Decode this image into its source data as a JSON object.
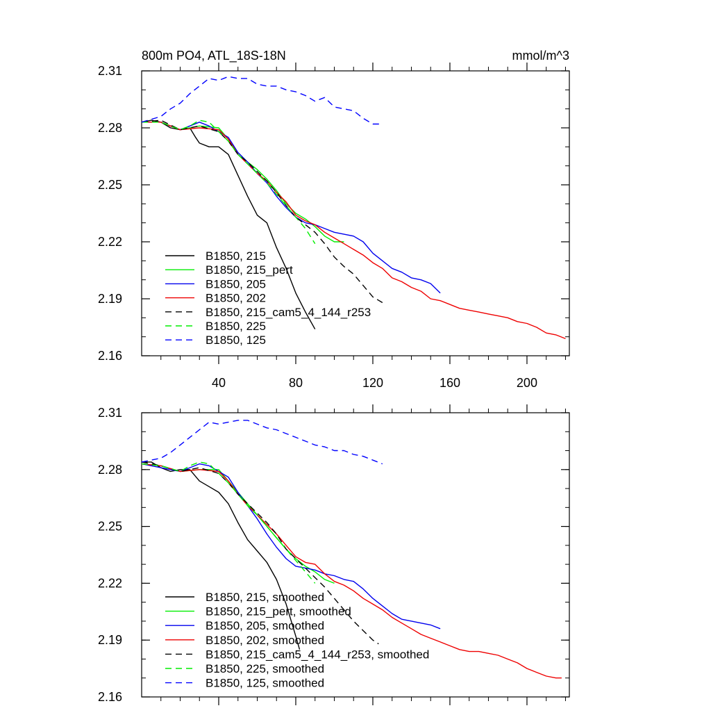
{
  "title_left": "800m PO4, ATL_18S-18N",
  "title_right": "mmol/m^3",
  "colors": {
    "black": "#000000",
    "green": "#00ee00",
    "blue": "#0000ee",
    "red": "#ee0000",
    "blue_dashed": "#0000ff"
  },
  "chart_data": [
    {
      "type": "line",
      "panel": "top",
      "xlim": [
        0,
        222
      ],
      "ylim": [
        2.16,
        2.31
      ],
      "xticks": [
        40,
        80,
        120,
        160,
        200
      ],
      "yticks": [
        2.16,
        2.19,
        2.22,
        2.25,
        2.28,
        2.31
      ],
      "ytick_labels": [
        "2.16",
        "2.19",
        "2.22",
        "2.25",
        "2.28",
        "2.31"
      ],
      "grid": false,
      "legend_position": "bottom-left",
      "series": [
        {
          "name": "B1850, 215",
          "color": "#000000",
          "dash": "solid",
          "x": [
            0,
            5,
            10,
            15,
            20,
            25,
            28,
            30,
            35,
            40,
            45,
            50,
            55,
            60,
            65,
            70,
            75,
            80,
            85,
            90
          ],
          "y": [
            2.283,
            2.284,
            2.283,
            2.28,
            2.279,
            2.28,
            2.275,
            2.272,
            2.27,
            2.27,
            2.266,
            2.255,
            2.244,
            2.234,
            2.23,
            2.217,
            2.206,
            2.193,
            2.183,
            2.174
          ]
        },
        {
          "name": "B1850, 215_pert",
          "color": "#00ee00",
          "dash": "solid",
          "x": [
            0,
            10,
            20,
            30,
            40,
            45,
            50,
            55,
            60,
            65,
            70,
            75,
            80,
            85,
            90,
            95,
            100,
            105
          ],
          "y": [
            2.283,
            2.283,
            2.279,
            2.281,
            2.28,
            2.274,
            2.267,
            2.262,
            2.258,
            2.253,
            2.247,
            2.24,
            2.235,
            2.232,
            2.228,
            2.223,
            2.22,
            2.22
          ]
        },
        {
          "name": "B1850, 205",
          "color": "#0000ee",
          "dash": "solid",
          "x": [
            0,
            10,
            20,
            25,
            30,
            35,
            40,
            45,
            50,
            55,
            60,
            65,
            70,
            75,
            80,
            85,
            90,
            95,
            100,
            105,
            110,
            115,
            120,
            125,
            130,
            135,
            140,
            145,
            150,
            155
          ],
          "y": [
            2.283,
            2.283,
            2.279,
            2.281,
            2.283,
            2.281,
            2.278,
            2.275,
            2.267,
            2.262,
            2.256,
            2.251,
            2.244,
            2.238,
            2.233,
            2.23,
            2.229,
            2.227,
            2.225,
            2.224,
            2.223,
            2.22,
            2.214,
            2.21,
            2.206,
            2.204,
            2.201,
            2.2,
            2.198,
            2.193
          ]
        },
        {
          "name": "B1850, 202",
          "color": "#ee0000",
          "dash": "solid",
          "x": [
            0,
            10,
            20,
            30,
            40,
            45,
            50,
            55,
            60,
            65,
            70,
            75,
            80,
            85,
            90,
            95,
            100,
            105,
            110,
            115,
            120,
            125,
            130,
            135,
            140,
            145,
            150,
            155,
            160,
            165,
            170,
            175,
            180,
            185,
            190,
            195,
            200,
            205,
            210,
            215,
            220
          ],
          "y": [
            2.283,
            2.283,
            2.279,
            2.28,
            2.279,
            2.274,
            2.266,
            2.261,
            2.256,
            2.252,
            2.246,
            2.241,
            2.234,
            2.231,
            2.229,
            2.225,
            2.222,
            2.219,
            2.216,
            2.213,
            2.209,
            2.206,
            2.201,
            2.199,
            2.196,
            2.194,
            2.19,
            2.189,
            2.187,
            2.185,
            2.184,
            2.183,
            2.182,
            2.181,
            2.18,
            2.178,
            2.177,
            2.175,
            2.172,
            2.171,
            2.169
          ]
        },
        {
          "name": "B1850, 215_cam5_4_144_r253",
          "color": "#000000",
          "dash": "dashed",
          "x": [
            0,
            10,
            20,
            30,
            40,
            45,
            50,
            55,
            60,
            65,
            70,
            75,
            80,
            85,
            90,
            95,
            100,
            105,
            110,
            115,
            120,
            125
          ],
          "y": [
            2.283,
            2.284,
            2.279,
            2.281,
            2.278,
            2.273,
            2.266,
            2.262,
            2.257,
            2.252,
            2.246,
            2.239,
            2.233,
            2.229,
            2.225,
            2.219,
            2.212,
            2.207,
            2.203,
            2.197,
            2.191,
            2.188
          ]
        },
        {
          "name": "B1850, 225",
          "color": "#00ee00",
          "dash": "dashed",
          "x": [
            0,
            10,
            20,
            25,
            30,
            35,
            40,
            45,
            50,
            55,
            60,
            65,
            70,
            75,
            80,
            85,
            90
          ],
          "y": [
            2.283,
            2.283,
            2.279,
            2.281,
            2.284,
            2.283,
            2.278,
            2.273,
            2.266,
            2.261,
            2.256,
            2.251,
            2.245,
            2.239,
            2.233,
            2.227,
            2.219
          ]
        },
        {
          "name": "B1850, 125",
          "color": "#0000ff",
          "dash": "dashed",
          "x": [
            0,
            10,
            15,
            20,
            25,
            30,
            35,
            40,
            45,
            50,
            55,
            60,
            65,
            70,
            75,
            80,
            85,
            90,
            95,
            100,
            105,
            110,
            115,
            120,
            125
          ],
          "y": [
            2.283,
            2.286,
            2.29,
            2.293,
            2.298,
            2.302,
            2.306,
            2.305,
            2.307,
            2.306,
            2.306,
            2.303,
            2.302,
            2.302,
            2.3,
            2.299,
            2.297,
            2.294,
            2.296,
            2.291,
            2.29,
            2.289,
            2.285,
            2.282,
            2.282
          ]
        }
      ]
    },
    {
      "type": "line",
      "panel": "bottom",
      "xlim": [
        0,
        222
      ],
      "ylim": [
        2.16,
        2.31
      ],
      "xticks": [
        40,
        80,
        120,
        160,
        200
      ],
      "yticks": [
        2.16,
        2.19,
        2.22,
        2.25,
        2.28,
        2.31
      ],
      "ytick_labels": [
        "2.16",
        "2.19",
        "2.22",
        "2.25",
        "2.28",
        "2.31"
      ],
      "grid": false,
      "legend_position": "bottom-left",
      "series": [
        {
          "name": "B1850, 215, smoothed",
          "color": "#000000",
          "dash": "solid",
          "x": [
            0,
            5,
            10,
            15,
            20,
            25,
            30,
            35,
            40,
            45,
            50,
            55,
            60,
            65,
            70,
            75,
            80,
            82
          ],
          "y": [
            2.284,
            2.284,
            2.281,
            2.279,
            2.28,
            2.28,
            2.274,
            2.271,
            2.268,
            2.262,
            2.252,
            2.243,
            2.237,
            2.231,
            2.222,
            2.209,
            2.192,
            2.185
          ]
        },
        {
          "name": "B1850, 215_pert, smoothed",
          "color": "#00ee00",
          "dash": "solid",
          "x": [
            0,
            10,
            20,
            30,
            40,
            45,
            50,
            55,
            60,
            65,
            70,
            75,
            80,
            85,
            90,
            95,
            100
          ],
          "y": [
            2.283,
            2.282,
            2.279,
            2.28,
            2.28,
            2.274,
            2.268,
            2.262,
            2.256,
            2.25,
            2.244,
            2.238,
            2.233,
            2.229,
            2.226,
            2.222,
            2.22
          ]
        },
        {
          "name": "B1850, 205, smoothed",
          "color": "#0000ee",
          "dash": "solid",
          "x": [
            0,
            10,
            20,
            25,
            30,
            35,
            40,
            45,
            50,
            55,
            60,
            65,
            70,
            75,
            80,
            85,
            90,
            95,
            100,
            105,
            110,
            115,
            120,
            125,
            130,
            135,
            140,
            145,
            150,
            155
          ],
          "y": [
            2.283,
            2.281,
            2.279,
            2.281,
            2.283,
            2.282,
            2.279,
            2.276,
            2.268,
            2.261,
            2.254,
            2.246,
            2.239,
            2.233,
            2.229,
            2.228,
            2.227,
            2.225,
            2.224,
            2.222,
            2.221,
            2.217,
            2.212,
            2.208,
            2.204,
            2.201,
            2.2,
            2.199,
            2.198,
            2.196
          ]
        },
        {
          "name": "B1850, 202, smoothed",
          "color": "#ee0000",
          "dash": "solid",
          "x": [
            0,
            10,
            20,
            30,
            40,
            45,
            50,
            55,
            60,
            65,
            70,
            75,
            80,
            85,
            90,
            95,
            100,
            105,
            110,
            115,
            120,
            125,
            130,
            135,
            140,
            145,
            150,
            155,
            160,
            165,
            170,
            175,
            180,
            185,
            190,
            195,
            200,
            205,
            210,
            215,
            218
          ],
          "y": [
            2.283,
            2.282,
            2.279,
            2.28,
            2.279,
            2.274,
            2.267,
            2.261,
            2.256,
            2.251,
            2.246,
            2.24,
            2.234,
            2.231,
            2.23,
            2.225,
            2.221,
            2.219,
            2.216,
            2.212,
            2.209,
            2.206,
            2.202,
            2.199,
            2.196,
            2.193,
            2.191,
            2.189,
            2.187,
            2.185,
            2.184,
            2.184,
            2.183,
            2.182,
            2.18,
            2.178,
            2.175,
            2.173,
            2.171,
            2.17,
            2.17
          ]
        },
        {
          "name": "B1850, 215_cam5_4_144_r253, smoothed",
          "color": "#000000",
          "dash": "dashed",
          "x": [
            0,
            10,
            20,
            30,
            40,
            45,
            50,
            55,
            60,
            65,
            70,
            75,
            80,
            85,
            90,
            95,
            100,
            105,
            110,
            115,
            120,
            123
          ],
          "y": [
            2.284,
            2.282,
            2.279,
            2.281,
            2.278,
            2.273,
            2.267,
            2.262,
            2.257,
            2.252,
            2.246,
            2.238,
            2.233,
            2.228,
            2.223,
            2.218,
            2.212,
            2.206,
            2.2,
            2.195,
            2.19,
            2.188
          ]
        },
        {
          "name": "B1850, 225, smoothed",
          "color": "#00ee00",
          "dash": "dashed",
          "x": [
            0,
            10,
            20,
            25,
            30,
            35,
            40,
            45,
            50,
            55,
            60,
            65,
            70,
            75,
            80,
            85,
            90
          ],
          "y": [
            2.283,
            2.282,
            2.279,
            2.282,
            2.284,
            2.283,
            2.278,
            2.273,
            2.267,
            2.261,
            2.256,
            2.25,
            2.244,
            2.238,
            2.232,
            2.226,
            2.22
          ]
        },
        {
          "name": "B1850, 125, smoothed",
          "color": "#0000ff",
          "dash": "dashed",
          "x": [
            0,
            10,
            15,
            20,
            25,
            30,
            35,
            40,
            45,
            50,
            55,
            60,
            65,
            70,
            75,
            80,
            85,
            90,
            95,
            100,
            105,
            110,
            115,
            120,
            125
          ],
          "y": [
            2.284,
            2.286,
            2.289,
            2.293,
            2.297,
            2.301,
            2.305,
            2.304,
            2.305,
            2.306,
            2.306,
            2.304,
            2.302,
            2.301,
            2.299,
            2.297,
            2.295,
            2.293,
            2.292,
            2.29,
            2.29,
            2.288,
            2.287,
            2.285,
            2.283
          ]
        }
      ]
    }
  ]
}
